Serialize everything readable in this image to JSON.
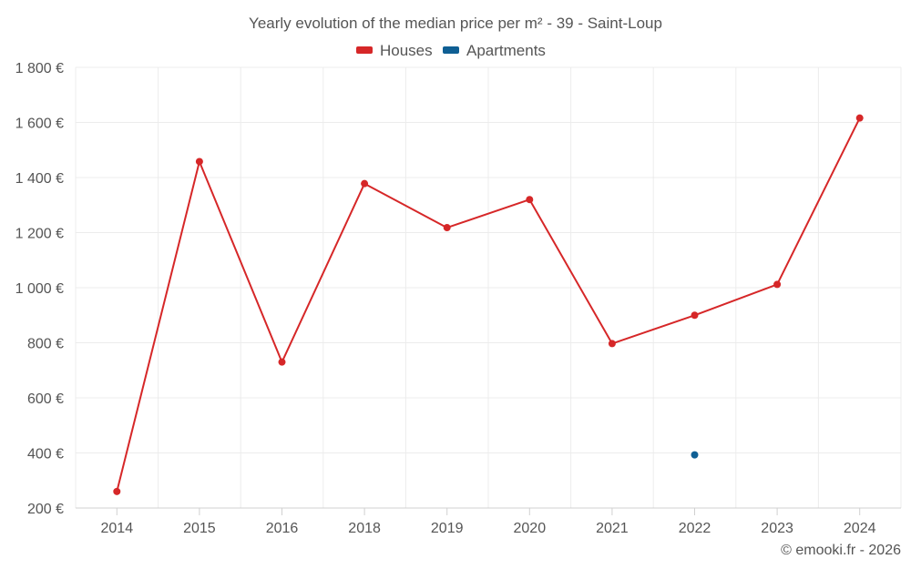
{
  "chart_data": {
    "type": "line",
    "title": "Yearly evolution of the median price per m² - 39 - Saint-Loup",
    "categories": [
      "2014",
      "2015",
      "2016",
      "2018",
      "2019",
      "2020",
      "2021",
      "2022",
      "2023",
      "2024"
    ],
    "series": [
      {
        "name": "Houses",
        "color": "#d62728",
        "values": [
          260,
          1458,
          730,
          1378,
          1218,
          1320,
          797,
          900,
          1012,
          1616
        ]
      },
      {
        "name": "Apartments",
        "color": "#0f5f94",
        "values": [
          null,
          null,
          null,
          null,
          null,
          null,
          null,
          393,
          null,
          null
        ]
      }
    ],
    "y_ticks": [
      "200 €",
      "400 €",
      "600 €",
      "800 €",
      "1 000 €",
      "1 200 €",
      "1 400 €",
      "1 600 €",
      "1 800 €"
    ],
    "ylim": [
      200,
      1800
    ],
    "xlabel": "",
    "ylabel": "",
    "legend_position": "top-center",
    "grid": true
  },
  "credit": "© emooki.fr - 2026"
}
